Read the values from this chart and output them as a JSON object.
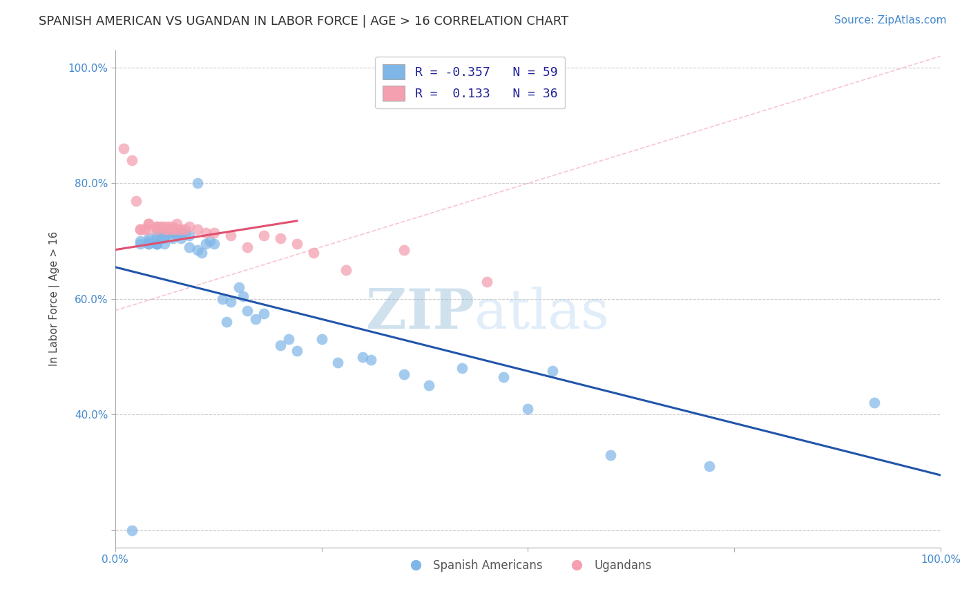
{
  "title": "SPANISH AMERICAN VS UGANDAN IN LABOR FORCE | AGE > 16 CORRELATION CHART",
  "source": "Source: ZipAtlas.com",
  "xlabel": "",
  "ylabel": "In Labor Force | Age > 16",
  "xlim": [
    0.0,
    1.0
  ],
  "ylim": [
    0.17,
    1.03
  ],
  "xticks": [
    0.0,
    0.25,
    0.5,
    0.75,
    1.0
  ],
  "xticklabels": [
    "0.0%",
    "",
    "",
    "",
    "100.0%"
  ],
  "ytick_positions": [
    0.2,
    0.4,
    0.6,
    0.8,
    1.0
  ],
  "yticklabels": [
    "",
    "40.0%",
    "60.0%",
    "80.0%",
    "100.0%"
  ],
  "blue_R": -0.357,
  "blue_N": 59,
  "pink_R": 0.133,
  "pink_N": 36,
  "blue_color": "#7EB6E8",
  "pink_color": "#F4A0B0",
  "blue_line_color": "#2255AA",
  "pink_line_color": "#E05070",
  "ref_line_color": "#F4A0B0",
  "grid_color": "#CCCCCC",
  "watermark_zip": "ZIP",
  "watermark_atlas": "atlas",
  "blue_line_x": [
    0.0,
    1.0
  ],
  "blue_line_y": [
    0.655,
    0.295
  ],
  "pink_line_x": [
    0.0,
    0.22
  ],
  "pink_line_y": [
    0.685,
    0.735
  ],
  "ref_line_x": [
    0.0,
    1.0
  ],
  "ref_line_y": [
    0.58,
    1.02
  ],
  "blue_scatter_x": [
    0.02,
    0.03,
    0.03,
    0.04,
    0.04,
    0.04,
    0.04,
    0.05,
    0.05,
    0.05,
    0.05,
    0.05,
    0.055,
    0.06,
    0.06,
    0.06,
    0.06,
    0.065,
    0.065,
    0.07,
    0.07,
    0.07,
    0.075,
    0.075,
    0.08,
    0.08,
    0.085,
    0.09,
    0.09,
    0.1,
    0.1,
    0.105,
    0.11,
    0.115,
    0.12,
    0.13,
    0.135,
    0.14,
    0.15,
    0.155,
    0.16,
    0.17,
    0.18,
    0.2,
    0.21,
    0.22,
    0.25,
    0.27,
    0.3,
    0.31,
    0.35,
    0.38,
    0.42,
    0.47,
    0.5,
    0.53,
    0.6,
    0.72,
    0.92
  ],
  "blue_scatter_y": [
    0.2,
    0.695,
    0.7,
    0.705,
    0.695,
    0.7,
    0.695,
    0.71,
    0.705,
    0.695,
    0.695,
    0.695,
    0.71,
    0.715,
    0.71,
    0.705,
    0.695,
    0.715,
    0.715,
    0.72,
    0.715,
    0.705,
    0.715,
    0.71,
    0.715,
    0.705,
    0.715,
    0.71,
    0.69,
    0.8,
    0.685,
    0.68,
    0.695,
    0.7,
    0.695,
    0.6,
    0.56,
    0.595,
    0.62,
    0.605,
    0.58,
    0.565,
    0.575,
    0.52,
    0.53,
    0.51,
    0.53,
    0.49,
    0.5,
    0.495,
    0.47,
    0.45,
    0.48,
    0.465,
    0.41,
    0.475,
    0.33,
    0.31,
    0.42
  ],
  "pink_scatter_x": [
    0.01,
    0.02,
    0.025,
    0.03,
    0.03,
    0.035,
    0.04,
    0.04,
    0.04,
    0.05,
    0.05,
    0.05,
    0.055,
    0.06,
    0.06,
    0.065,
    0.065,
    0.07,
    0.07,
    0.075,
    0.075,
    0.08,
    0.085,
    0.09,
    0.1,
    0.11,
    0.12,
    0.14,
    0.16,
    0.18,
    0.2,
    0.22,
    0.24,
    0.28,
    0.35,
    0.45
  ],
  "pink_scatter_y": [
    0.86,
    0.84,
    0.77,
    0.72,
    0.72,
    0.72,
    0.73,
    0.73,
    0.72,
    0.725,
    0.725,
    0.72,
    0.725,
    0.725,
    0.72,
    0.72,
    0.725,
    0.725,
    0.72,
    0.73,
    0.72,
    0.72,
    0.72,
    0.725,
    0.72,
    0.715,
    0.715,
    0.71,
    0.69,
    0.71,
    0.705,
    0.695,
    0.68,
    0.65,
    0.685,
    0.63
  ],
  "title_fontsize": 13,
  "axis_label_fontsize": 11,
  "tick_fontsize": 11,
  "source_fontsize": 11
}
